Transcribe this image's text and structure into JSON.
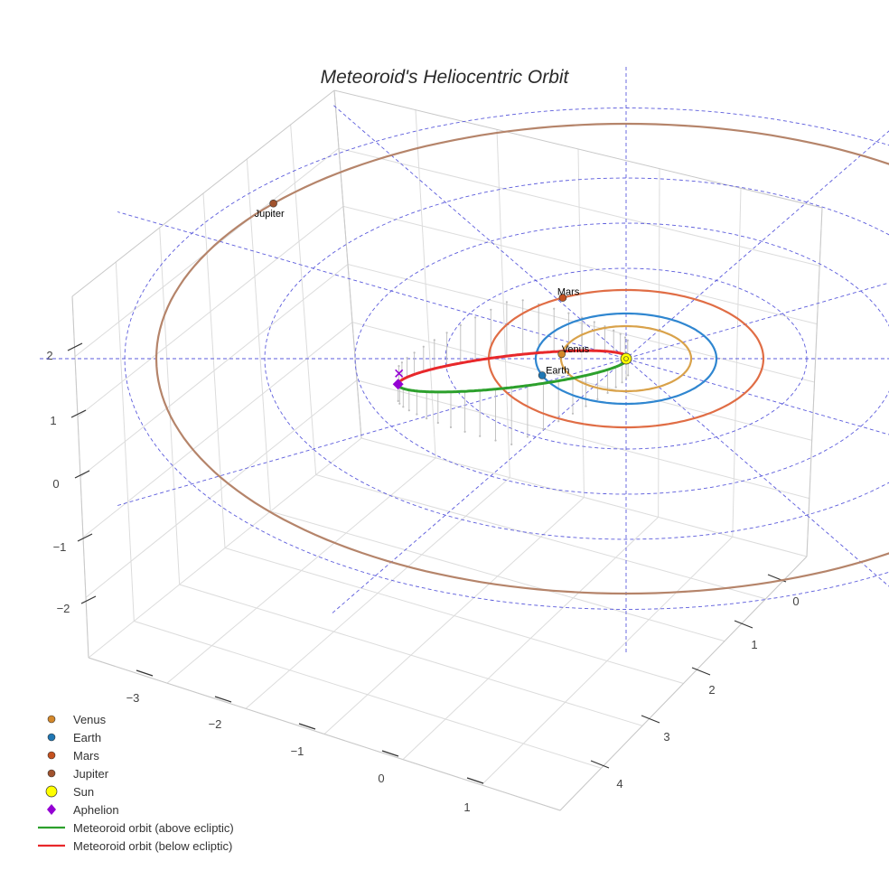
{
  "chart_data": {
    "type": "scatter3d",
    "title": "Meteoroid's Heliocentric Orbit",
    "axes": {
      "x_ticks": [
        "−3",
        "−2",
        "−1",
        "0",
        "1"
      ],
      "y_ticks": [
        "0",
        "1",
        "2",
        "3",
        "4"
      ],
      "z_ticks": [
        "2",
        "1",
        "0",
        "−1",
        "−2"
      ]
    },
    "planets": [
      {
        "name": "Venus",
        "a_au": 0.72,
        "color": "#d4882a",
        "orbit_color": "#d9a24a"
      },
      {
        "name": "Earth",
        "a_au": 1.0,
        "color": "#1f77b4",
        "orbit_color": "#2f86d0"
      },
      {
        "name": "Mars",
        "a_au": 1.52,
        "color": "#c4511f",
        "orbit_color": "#e06d45"
      },
      {
        "name": "Jupiter",
        "a_au": 5.2,
        "color": "#a0522d",
        "orbit_color": "#b5846a"
      }
    ],
    "sun": {
      "name": "Sun",
      "color": "#ffff00"
    },
    "aphelion": {
      "name": "Aphelion",
      "color": "#9400d3"
    },
    "meteoroid": {
      "above_label": "Meteoroid orbit (above ecliptic)",
      "below_label": "Meteoroid orbit (below ecliptic)",
      "above_color": "#2ca02c",
      "below_color": "#e8282b"
    },
    "ecliptic_grid_color": "#5b5bdc",
    "legend": [
      "Venus",
      "Earth",
      "Mars",
      "Jupiter",
      "Sun",
      "Aphelion",
      "Meteoroid orbit (above ecliptic)",
      "Meteoroid orbit (below ecliptic)"
    ]
  }
}
